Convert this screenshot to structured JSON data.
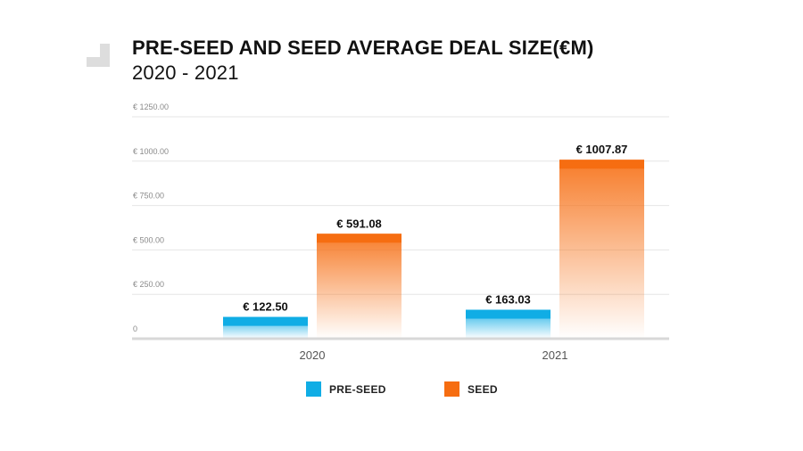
{
  "title": {
    "line1": "PRE-SEED AND SEED AVERAGE DEAL SIZE(€M)",
    "line2": "2020 - 2021"
  },
  "colors": {
    "pre_seed": "#10ade5",
    "seed": "#f66d11",
    "grid": "#e6e6e6",
    "tick_text": "#8a8a8a",
    "label_text": "#111111",
    "logo": "#dddddd"
  },
  "chart_data": {
    "type": "bar",
    "title": "PRE-SEED AND SEED AVERAGE DEAL SIZE(€M) 2020 - 2021",
    "categories": [
      "2020",
      "2021"
    ],
    "series": [
      {
        "name": "PRE-SEED",
        "values": [
          122.5,
          163.03
        ],
        "labels": [
          "€ 122.50",
          "€ 163.03"
        ]
      },
      {
        "name": "SEED",
        "values": [
          591.08,
          1007.87
        ],
        "labels": [
          "€ 591.08",
          "€ 1007.87"
        ]
      }
    ],
    "ylim": [
      0,
      1250
    ],
    "yticks": [
      0,
      250,
      500,
      750,
      1000,
      1250
    ],
    "ytick_labels": [
      "0",
      "€ 250.00",
      "€ 500.00",
      "€ 750.00",
      "€ 1000.00",
      "€ 1250.00"
    ],
    "grid": true,
    "legend": "bottom-center"
  }
}
